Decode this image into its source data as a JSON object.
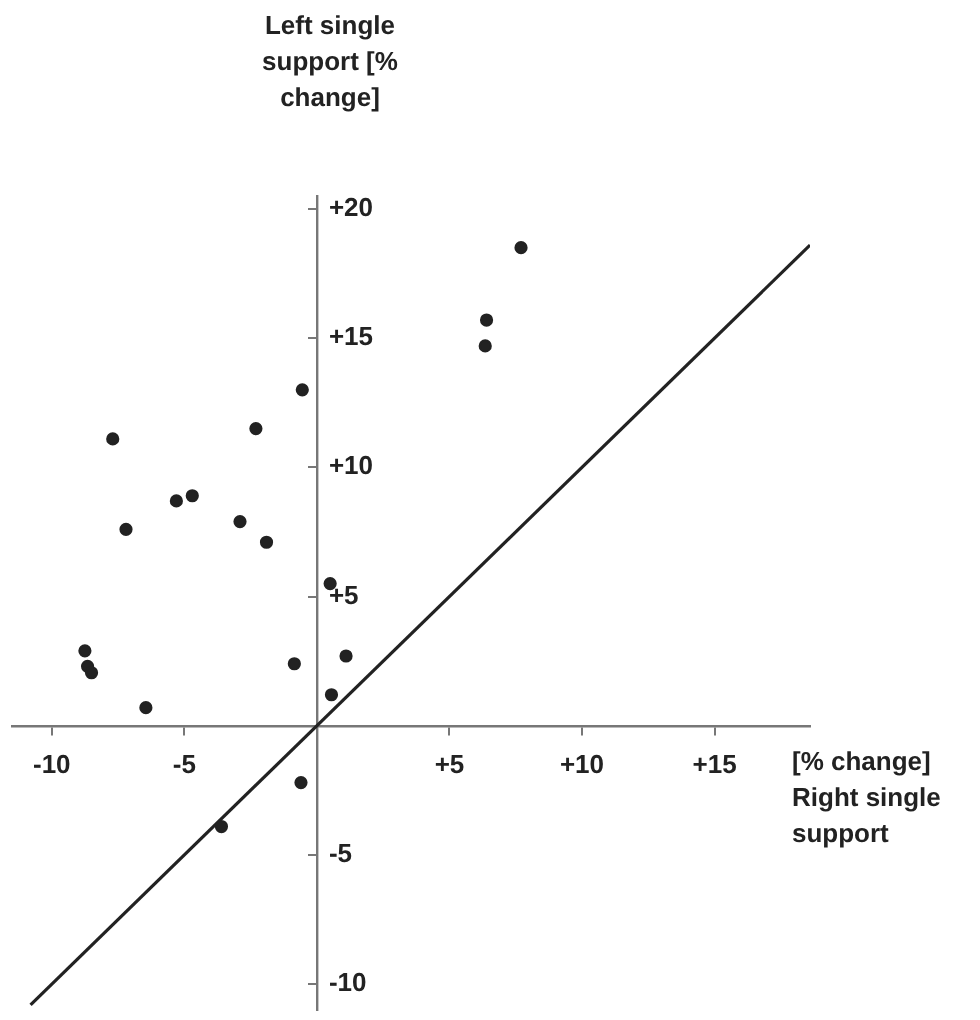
{
  "chart_data": {
    "type": "scatter",
    "ylabel": "Left single support [% change]",
    "xlabel": "[% change] Right single support",
    "xlim": [
      -11.5,
      18.6
    ],
    "ylim": [
      -11,
      20.5
    ],
    "xticks": [
      {
        "value": -10,
        "label": "-10"
      },
      {
        "value": -5,
        "label": "-5"
      },
      {
        "value": 5,
        "label": "+5"
      },
      {
        "value": 10,
        "label": "+10"
      },
      {
        "value": 15,
        "label": "+15"
      }
    ],
    "yticks": [
      {
        "value": 20,
        "label": "+20"
      },
      {
        "value": 15,
        "label": "+15"
      },
      {
        "value": 10,
        "label": "+10"
      },
      {
        "value": 5,
        "label": "+5"
      },
      {
        "value": -5,
        "label": "-5"
      },
      {
        "value": -10,
        "label": "-10"
      }
    ],
    "grid": false,
    "legend": false,
    "series": [
      {
        "marker": "circle",
        "color": "#222222",
        "x": [
          -7.7,
          -7.2,
          -5.3,
          -4.7,
          -2.9,
          -2.3,
          -1.9,
          -0.55,
          0.5,
          -0.85,
          1.1,
          0.55,
          -6.45,
          -8.75,
          -8.65,
          -8.5,
          6.35,
          6.4,
          7.7,
          -0.6,
          -3.6
        ],
        "values": [
          11.1,
          7.6,
          8.7,
          8.9,
          7.9,
          11.5,
          7.1,
          13.0,
          5.5,
          2.4,
          2.7,
          1.2,
          0.7,
          2.9,
          2.3,
          2.05,
          14.7,
          15.7,
          18.5,
          -2.2,
          -3.9
        ]
      },
      {
        "type": "line",
        "marker": "none",
        "color": "#222222",
        "x": [
          -10.8,
          18.6
        ],
        "values": [
          -10.8,
          18.6
        ]
      }
    ]
  }
}
